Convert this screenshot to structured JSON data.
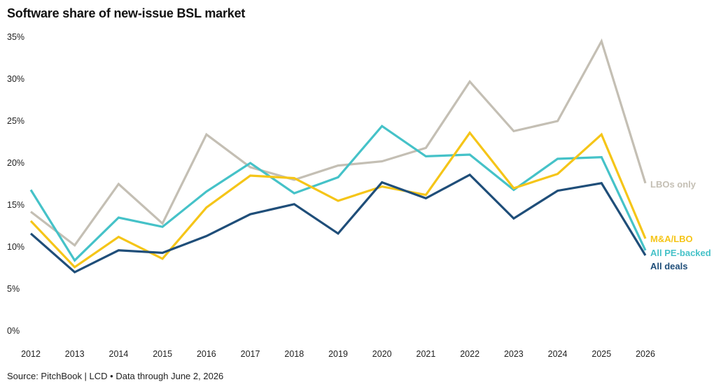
{
  "chart_data": {
    "type": "line",
    "title": "Software share of new-issue BSL market",
    "source": "Source: PitchBook | LCD • Data through June 2, 2026",
    "x": [
      "2012",
      "2013",
      "2014",
      "2015",
      "2016",
      "2017",
      "2018",
      "2019",
      "2020",
      "2021",
      "2022",
      "2023",
      "2024",
      "2025",
      "2026"
    ],
    "ylim": [
      0,
      35
    ],
    "yticks": [
      0,
      5,
      10,
      15,
      20,
      25,
      30,
      35
    ],
    "ytick_labels": [
      "0%",
      "5%",
      "10%",
      "15%",
      "20%",
      "25%",
      "30%",
      "35%"
    ],
    "grid": false,
    "series": [
      {
        "name": "LBOs only",
        "color": "#c4bfb4",
        "values": [
          14.2,
          10.2,
          17.5,
          12.8,
          23.4,
          19.5,
          18.0,
          19.7,
          20.2,
          21.8,
          29.7,
          23.8,
          25.0,
          34.5,
          17.6
        ]
      },
      {
        "name": "All PE-backed",
        "color": "#45c2c8",
        "values": [
          16.8,
          8.4,
          13.5,
          12.4,
          16.6,
          20.0,
          16.4,
          18.3,
          24.4,
          20.8,
          21.0,
          16.8,
          20.5,
          20.7,
          9.6
        ]
      },
      {
        "name": "M&A/LBO",
        "color": "#f5c518",
        "values": [
          13.1,
          7.6,
          11.2,
          8.6,
          14.7,
          18.5,
          18.2,
          15.5,
          17.2,
          16.2,
          23.6,
          17.0,
          18.7,
          23.4,
          11.0
        ]
      },
      {
        "name": "All deals",
        "color": "#1f4e79",
        "values": [
          11.6,
          7.0,
          9.6,
          9.3,
          11.3,
          13.9,
          15.1,
          11.6,
          17.7,
          15.8,
          18.6,
          13.4,
          16.7,
          17.6,
          9.0
        ]
      }
    ]
  }
}
